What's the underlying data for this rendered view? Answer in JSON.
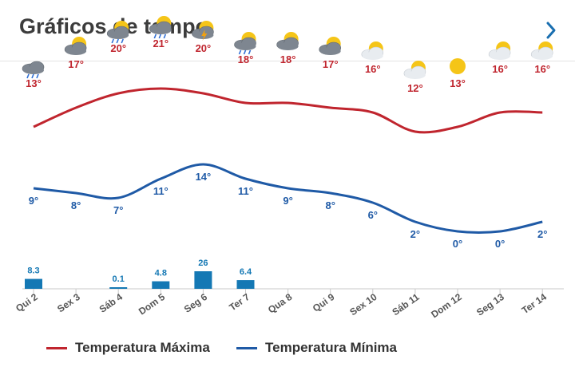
{
  "header": {
    "title": "Gráficos de tempo",
    "next_icon": "chevron-right-icon"
  },
  "colors": {
    "max": "#c0252e",
    "min": "#1f5aa6",
    "precip": "#1478b4",
    "title": "#3c3c3c"
  },
  "chart_data": {
    "type": "line",
    "categories": [
      "Qui 2",
      "Sex 3",
      "Sáb 4",
      "Dom 5",
      "Seg 6",
      "Ter 7",
      "Qua 8",
      "Qui 9",
      "Sex 10",
      "Sáb 11",
      "Dom 12",
      "Seg 13",
      "Ter 14"
    ],
    "series": [
      {
        "name": "Temperatura Máxima",
        "values": [
          13,
          17,
          20,
          21,
          20,
          18,
          18,
          17,
          16,
          12,
          13,
          16,
          16
        ]
      },
      {
        "name": "Temperatura Mínima",
        "values": [
          9,
          8,
          7,
          11,
          14,
          11,
          9,
          8,
          6,
          2,
          0,
          0,
          2
        ]
      }
    ],
    "precipitation": [
      {
        "value": 8.3,
        "label": "8.3"
      },
      {
        "value": 0,
        "label": ""
      },
      {
        "value": 0.1,
        "label": "0.1"
      },
      {
        "value": 4.8,
        "label": "4.8"
      },
      {
        "value": 26,
        "label": "26"
      },
      {
        "value": 6.4,
        "label": "6.4"
      },
      {
        "value": 0,
        "label": ""
      },
      {
        "value": 0,
        "label": ""
      },
      {
        "value": 0,
        "label": ""
      },
      {
        "value": 0,
        "label": ""
      },
      {
        "value": 0,
        "label": ""
      },
      {
        "value": 0,
        "label": ""
      },
      {
        "value": 0,
        "label": ""
      }
    ],
    "icons": [
      "rain-cloud-icon",
      "partly-cloudy-icon",
      "partly-cloudy-rain-icon",
      "partly-cloudy-rain-icon",
      "partly-cloudy-storm-icon",
      "partly-cloudy-rain-icon",
      "partly-cloudy-icon",
      "partly-cloudy-icon",
      "sun-cloud-icon",
      "sun-cloud-icon",
      "sun-icon",
      "sun-cloud-icon",
      "sun-cloud-icon"
    ],
    "temp_unit": "°",
    "legend": [
      "Temperatura Máxima",
      "Temperatura Mínima"
    ],
    "legend_position": "bottom"
  }
}
